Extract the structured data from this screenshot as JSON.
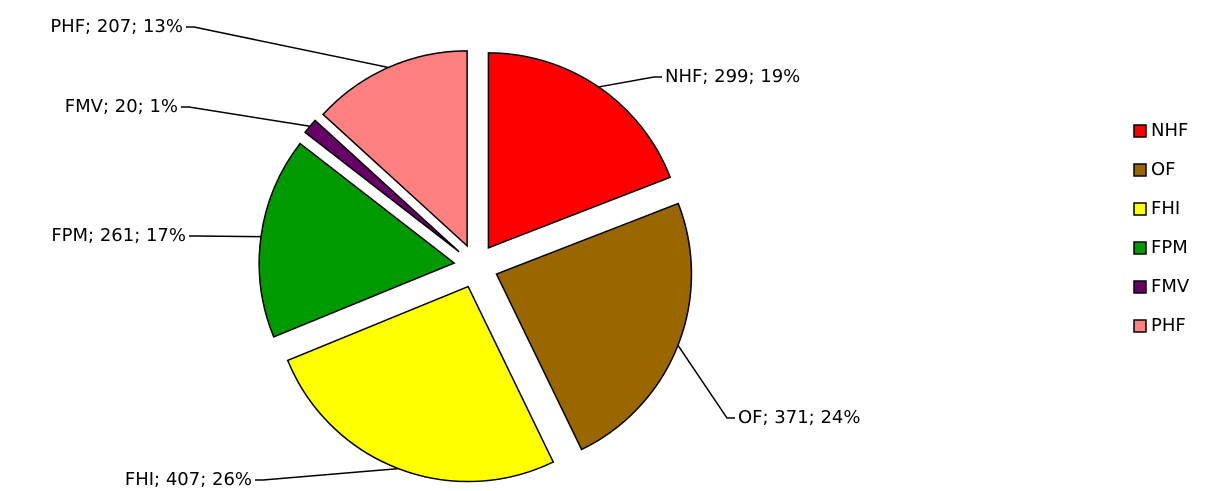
{
  "chart_data": {
    "type": "pie",
    "categories": [
      "NHF",
      "OF",
      "FHI",
      "FPM",
      "FMV",
      "PHF"
    ],
    "values": [
      299,
      371,
      407,
      261,
      20,
      207
    ],
    "value_labels": [
      "NHF; 299; 19%",
      "OF; 371; 24%",
      "FHI; 407; 26%",
      "FPM; 261; 17%",
      "FMV; 20; 1%",
      "PHF; 207; 13%"
    ],
    "colors": [
      "#ff0000",
      "#996600",
      "#ffff00",
      "#009900",
      "#660066",
      "#ff8080"
    ],
    "legend": "right"
  }
}
